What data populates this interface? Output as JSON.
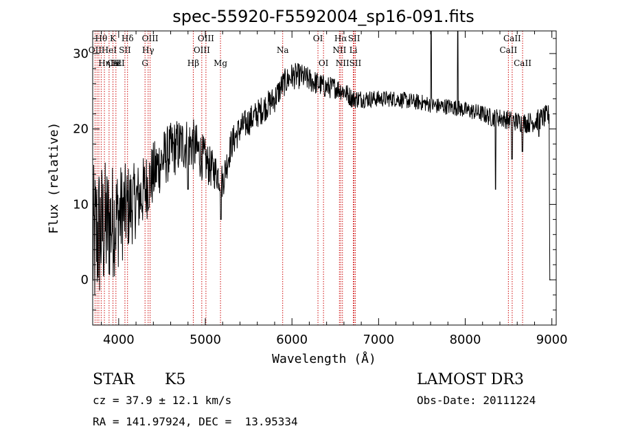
{
  "chart_data": {
    "type": "line",
    "title": "spec-55920-F5592004_sp16-091.fits",
    "xlabel": "Wavelength (Å)",
    "ylabel": "Flux (relative)",
    "xlim": [
      3700,
      9050
    ],
    "ylim": [
      -6,
      33
    ],
    "x_ticks": [
      4000,
      5000,
      6000,
      7000,
      8000,
      9000
    ],
    "y_ticks": [
      0,
      10,
      20,
      30
    ],
    "series": [
      {
        "name": "spectrum",
        "continuum": [
          [
            3700,
            4
          ],
          [
            3750,
            6
          ],
          [
            3850,
            7
          ],
          [
            3950,
            8
          ],
          [
            4050,
            9
          ],
          [
            4150,
            10
          ],
          [
            4250,
            11
          ],
          [
            4350,
            13
          ],
          [
            4450,
            15
          ],
          [
            4550,
            16.5
          ],
          [
            4650,
            17.5
          ],
          [
            4750,
            18
          ],
          [
            4850,
            18
          ],
          [
            4950,
            16.5
          ],
          [
            5050,
            15
          ],
          [
            5150,
            14
          ],
          [
            5200,
            13
          ],
          [
            5300,
            18
          ],
          [
            5400,
            20
          ],
          [
            5500,
            21
          ],
          [
            5600,
            22
          ],
          [
            5700,
            23
          ],
          [
            5800,
            24
          ],
          [
            5900,
            26
          ],
          [
            6000,
            27
          ],
          [
            6100,
            27
          ],
          [
            6200,
            26.5
          ],
          [
            6300,
            26
          ],
          [
            6400,
            25.5
          ],
          [
            6500,
            25.5
          ],
          [
            6600,
            25
          ],
          [
            6700,
            24
          ],
          [
            6800,
            24
          ],
          [
            6900,
            24
          ],
          [
            7000,
            24
          ],
          [
            7100,
            24
          ],
          [
            7200,
            24
          ],
          [
            7300,
            23.8
          ],
          [
            7400,
            23.6
          ],
          [
            7500,
            23.5
          ],
          [
            7600,
            23.2
          ],
          [
            7700,
            23
          ],
          [
            7800,
            23
          ],
          [
            7900,
            22.8
          ],
          [
            8000,
            22.5
          ],
          [
            8100,
            22.3
          ],
          [
            8200,
            22
          ],
          [
            8300,
            21.5
          ],
          [
            8400,
            21.5
          ],
          [
            8500,
            21.2
          ],
          [
            8600,
            21
          ],
          [
            8700,
            20.8
          ],
          [
            8800,
            21
          ],
          [
            8900,
            21.5
          ],
          [
            9000,
            22
          ]
        ],
        "noise": [
          [
            3700,
            11
          ],
          [
            4000,
            7
          ],
          [
            4200,
            5
          ],
          [
            4500,
            4
          ],
          [
            4900,
            3.5
          ],
          [
            5100,
            2.5
          ],
          [
            5400,
            2
          ],
          [
            6000,
            1.8
          ],
          [
            7000,
            1.1
          ],
          [
            8000,
            1.1
          ],
          [
            9000,
            1.5
          ]
        ],
        "features": [
          [
            7605,
            34
          ],
          [
            7915,
            34
          ],
          [
            8350,
            12
          ],
          [
            8540,
            16
          ],
          [
            8660,
            17
          ],
          [
            8850,
            19
          ],
          [
            8975,
            10
          ],
          [
            8980,
            0
          ],
          [
            5180,
            8
          ],
          [
            4800,
            12
          ]
        ]
      }
    ],
    "line_ids": [
      {
        "name": "Hθ",
        "wl": 3798,
        "row": 0
      },
      {
        "name": "K",
        "wl": 3934,
        "row": 0
      },
      {
        "name": "Hδ",
        "wl": 4102,
        "row": 0
      },
      {
        "name": "OIII",
        "wl": 4363,
        "row": 0
      },
      {
        "name": "OIII",
        "wl": 5007,
        "row": 0
      },
      {
        "name": "OI",
        "wl": 6300,
        "row": 0
      },
      {
        "name": "Hα",
        "wl": 6563,
        "row": 0
      },
      {
        "name": "SII",
        "wl": 6717,
        "row": 0
      },
      {
        "name": "CaII",
        "wl": 8542,
        "row": 0
      },
      {
        "name": "OII",
        "wl": 3727,
        "row": 1
      },
      {
        "name": "HeI",
        "wl": 3889,
        "row": 1
      },
      {
        "name": "SII",
        "wl": 4072,
        "row": 1
      },
      {
        "name": "Hγ",
        "wl": 4340,
        "row": 1
      },
      {
        "name": "OIII",
        "wl": 4959,
        "row": 1
      },
      {
        "name": "Na",
        "wl": 5893,
        "row": 1
      },
      {
        "name": "NII",
        "wl": 6548,
        "row": 1
      },
      {
        "name": "Li",
        "wl": 6708,
        "row": 1
      },
      {
        "name": "CaII",
        "wl": 8498,
        "row": 1
      },
      {
        "name": "CaII",
        "wl": 3968,
        "row": 2
      },
      {
        "name": "Hε",
        "wl": 3970,
        "row": 2
      },
      {
        "name": "Hη",
        "wl": 3835,
        "row": 2
      },
      {
        "name": "H",
        "wl": 3968,
        "row": 2
      },
      {
        "name": "G",
        "wl": 4304,
        "row": 2
      },
      {
        "name": "Hβ",
        "wl": 4861,
        "row": 2
      },
      {
        "name": "Mg",
        "wl": 5175,
        "row": 2
      },
      {
        "name": "OI",
        "wl": 6364,
        "row": 2
      },
      {
        "name": "NII",
        "wl": 6583,
        "row": 2
      },
      {
        "name": "SII",
        "wl": 6731,
        "row": 2
      },
      {
        "name": "CaII",
        "wl": 8662,
        "row": 2
      }
    ],
    "line_marker_wavelengths": [
      3727,
      3750,
      3771,
      3798,
      3835,
      3889,
      3934,
      3968,
      4072,
      4102,
      4304,
      4340,
      4363,
      4861,
      4959,
      5007,
      5175,
      5893,
      6300,
      6364,
      6548,
      6563,
      6583,
      6708,
      6717,
      6731,
      8498,
      8542,
      8662
    ],
    "line_marker_color": "#cc0000"
  },
  "info": {
    "object_class": "STAR",
    "subclass": "K5",
    "survey": "LAMOST DR3",
    "cz": "cz = 37.9 ± 12.1 km/s",
    "obs_date": "Obs-Date: 20111224",
    "coords": "RA = 141.97924, DEC =  13.95334"
  }
}
